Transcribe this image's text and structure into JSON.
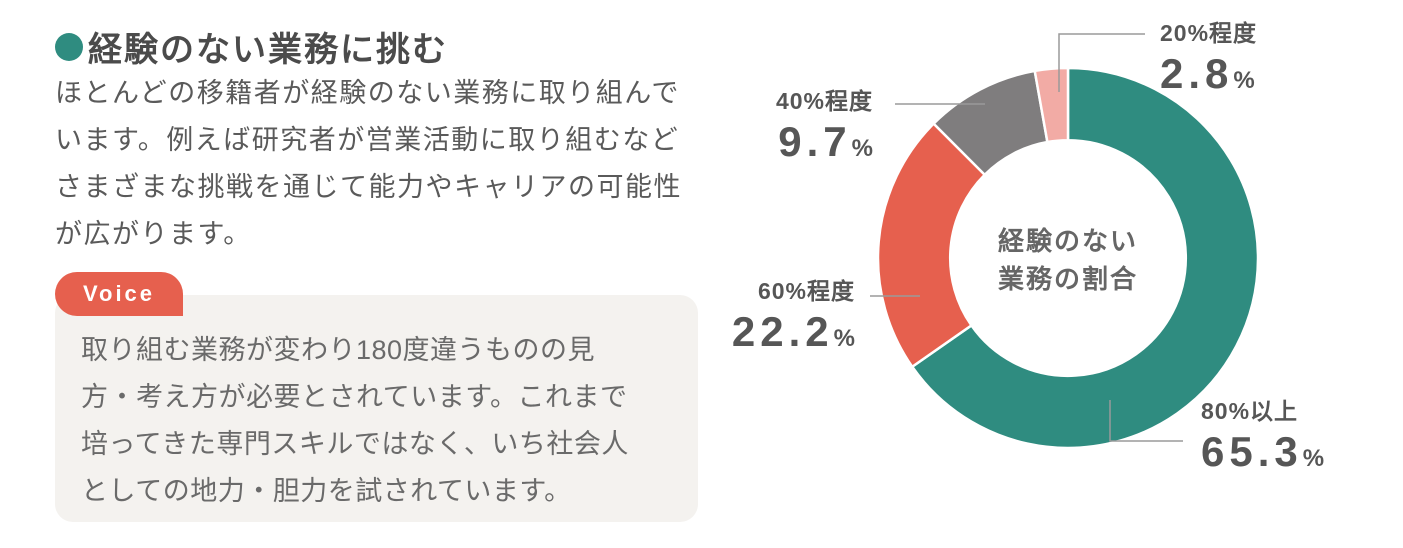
{
  "page": {
    "background": "#ffffff"
  },
  "header": {
    "title": "経験のない業務に挑む",
    "bullet_color": "#2f8c80"
  },
  "intro": {
    "lines": [
      "ほとんどの移籍者が経験のない業務に取り組んで",
      "います。例えば研究者が営業活動に取り組むなど",
      "さまざまな挑戦を通じて能力やキャリアの可能性",
      "が広がります。"
    ]
  },
  "voice": {
    "badge_label": "Voice",
    "badge_color": "#e6604e",
    "box_background": "#f4f2ef",
    "lines": [
      "取り組む業務が変わり180度違うものの見",
      "方・考え方が必要とされています。これまで",
      "培ってきた専門スキルではなく、いち社会人",
      "としての地力・胆力を試されています。"
    ]
  },
  "chart_data": {
    "type": "pie",
    "subtype": "donut",
    "title": "経験のない業務の割合",
    "center_label_lines": [
      "経験のない",
      "業務の割合"
    ],
    "unit": "%",
    "start_angle_deg": 0,
    "direction": "clockwise",
    "inner_radius_ratio": 0.62,
    "separator_color": "#ffffff",
    "leader_line_color": "#9a9a9a",
    "segments": [
      {
        "label": "80%以上",
        "value": 65.3,
        "color": "#2f8c80"
      },
      {
        "label": "60%程度",
        "value": 22.2,
        "color": "#e6604e"
      },
      {
        "label": "40%程度",
        "value": 9.7,
        "color": "#7f7d7e"
      },
      {
        "label": "20%程度",
        "value": 2.8,
        "color": "#f2aba5"
      }
    ]
  }
}
